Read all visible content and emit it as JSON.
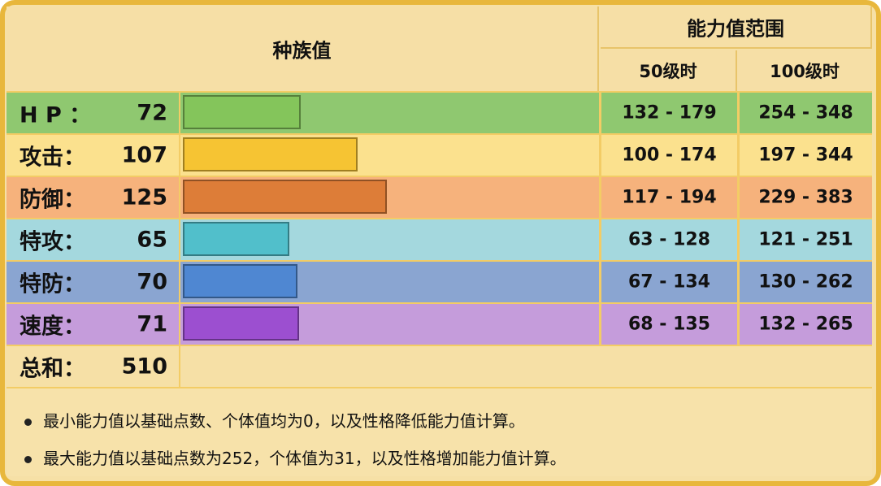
{
  "header": {
    "species_title": "种族值",
    "range_title": "能力值范围",
    "level50": "50级时",
    "level100": "100级时"
  },
  "stats": [
    {
      "name": "H P ：",
      "value": "72",
      "base": 72,
      "range50": "132 - 179",
      "range100": "254 - 348",
      "color": "#8fc870",
      "bar_color": "#84c55b"
    },
    {
      "name": "攻击：",
      "value": "107",
      "base": 107,
      "range50": "100 - 174",
      "range100": "197 - 344",
      "color": "#fbe18e",
      "bar_color": "#f6c433"
    },
    {
      "name": "防御：",
      "value": "125",
      "base": 125,
      "range50": "117 - 194",
      "range100": "229 - 383",
      "color": "#f6b27c",
      "bar_color": "#dd7d38"
    },
    {
      "name": "特攻：",
      "value": "65",
      "base": 65,
      "range50": "63 - 128",
      "range100": "121 - 251",
      "color": "#a4d8de",
      "bar_color": "#51bfcb"
    },
    {
      "name": "特防：",
      "value": "70",
      "base": 70,
      "range50": "67 - 134",
      "range100": "130 - 262",
      "color": "#8aa5d1",
      "bar_color": "#4f87d2"
    },
    {
      "name": "速度：",
      "value": "71",
      "base": 71,
      "range50": "68 - 135",
      "range100": "132 - 265",
      "color": "#c59cdb",
      "bar_color": "#9c4fd0"
    }
  ],
  "total": {
    "name": "总和：",
    "value": "510"
  },
  "notes": [
    "最小能力值以基础点数、个体值均为0，以及性格降低能力值计算。",
    "最大能力值以基础点数为252，个体值为31，以及性格增加能力值计算。"
  ]
}
